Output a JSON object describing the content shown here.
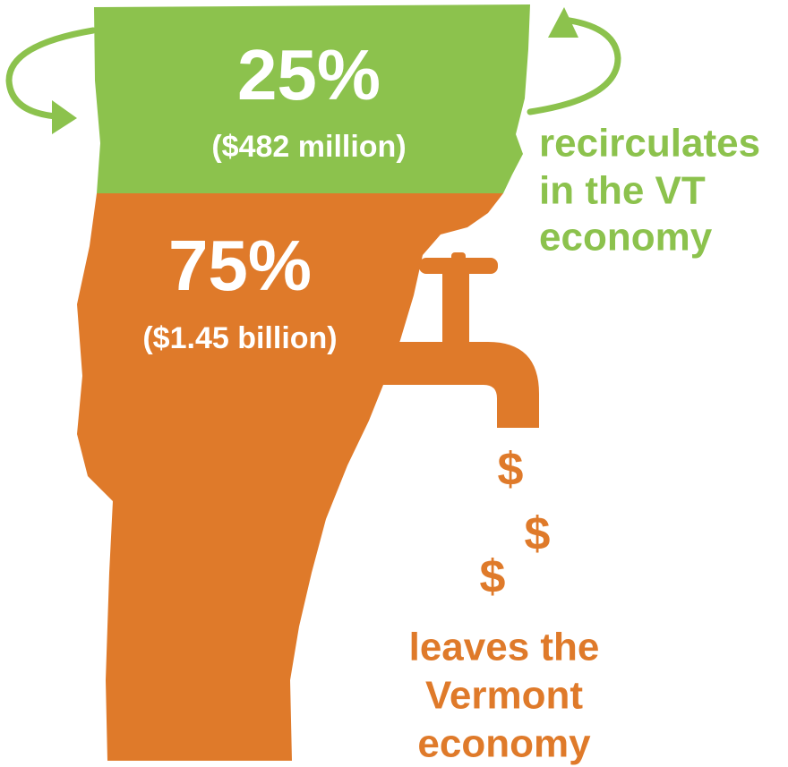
{
  "top": {
    "percent": "25%",
    "amount": "($482 million)",
    "caption": [
      "recirculates",
      "in the VT",
      "economy"
    ]
  },
  "bottom": {
    "percent": "75%",
    "amount": "($1.45 billion)",
    "caption": [
      "leaves the",
      "Vermont",
      "economy"
    ]
  },
  "dollar_signs": [
    "$",
    "$",
    "$"
  ]
}
